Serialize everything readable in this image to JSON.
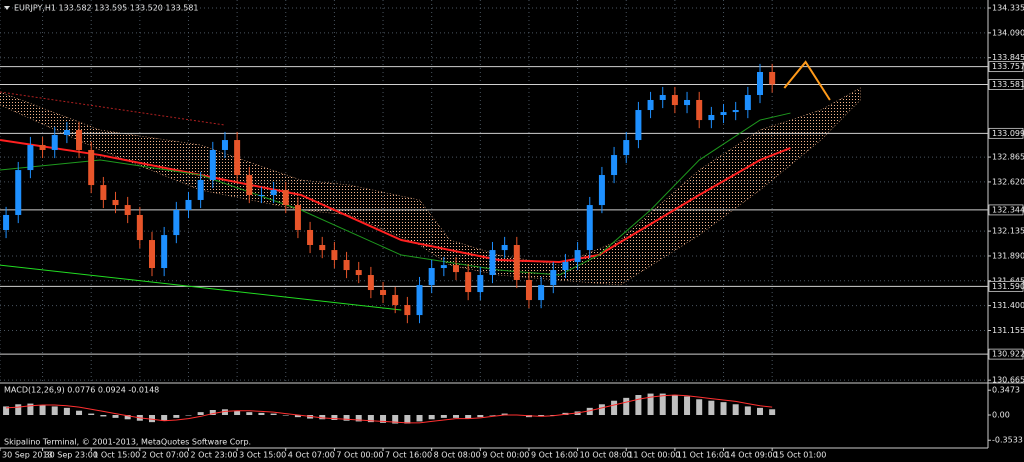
{
  "chart_data": [
    {
      "type": "candlestick",
      "header": "EURJPY,H1  133.582 133.595 133.520 133.581",
      "footer": "Skipalino Terminal, © 2001-2013, MetaQuotes Software Corp.",
      "up_color": "#1e90ff",
      "down_color": "#e8552a",
      "background": "#000000",
      "grid": true,
      "grid_color": "#4a5560",
      "xlim": [
        0,
        325
      ],
      "ylim": [
        130.647,
        134.414
      ],
      "xticks": [
        {
          "value": 0,
          "label": "30 Sep 2013"
        },
        {
          "value": 14,
          "label": "30 Sep 23:00"
        },
        {
          "value": 30,
          "label": "1 Oct 15:00"
        },
        {
          "value": 46,
          "label": "2 Oct 07:00"
        },
        {
          "value": 62,
          "label": "2 Oct 23:00"
        },
        {
          "value": 78,
          "label": "3 Oct 15:00"
        },
        {
          "value": 94,
          "label": "4 Oct 07:00"
        },
        {
          "value": 110,
          "label": "7 Oct 00:00"
        },
        {
          "value": 126,
          "label": "7 Oct 16:00"
        },
        {
          "value": 142,
          "label": "8 Oct 08:00"
        },
        {
          "value": 158,
          "label": "9 Oct 00:00"
        },
        {
          "value": 174,
          "label": "9 Oct 16:00"
        },
        {
          "value": 190,
          "label": "10 Oct 08:00"
        },
        {
          "value": 206,
          "label": "11 Oct 00:00"
        },
        {
          "value": 222,
          "label": "11 Oct 16:00"
        },
        {
          "value": 238,
          "label": "14 Oct 09:00"
        },
        {
          "value": 254,
          "label": "15 Oct 01:00"
        }
      ],
      "yticks": [
        {
          "value": 134.335,
          "label": "134.335"
        },
        {
          "value": 134.09,
          "label": "134.090"
        },
        {
          "value": 133.845,
          "label": "133.845"
        },
        {
          "value": 132.865,
          "label": "132.865"
        },
        {
          "value": 132.62,
          "label": "132.620"
        },
        {
          "value": 132.135,
          "label": "132.135"
        },
        {
          "value": 131.89,
          "label": "131.890"
        },
        {
          "value": 131.645,
          "label": "131.645"
        },
        {
          "value": 131.4,
          "label": "131.400"
        },
        {
          "value": 131.155,
          "label": "131.155"
        },
        {
          "value": 130.665,
          "label": "130.665"
        }
      ],
      "levels": [
        {
          "value": 133.757,
          "label": "133.757"
        },
        {
          "value": 133.581,
          "label": "133.581"
        },
        {
          "value": 133.099,
          "label": "133.099"
        },
        {
          "value": 132.344,
          "label": "132.344"
        },
        {
          "value": 131.59,
          "label": "131.590"
        },
        {
          "value": 130.922,
          "label": "130.922"
        }
      ],
      "x": [
        2,
        6,
        10,
        14,
        18,
        22,
        26,
        30,
        34,
        38,
        42,
        46,
        50,
        54,
        58,
        62,
        66,
        70,
        74,
        78,
        82,
        86,
        90,
        94,
        98,
        102,
        106,
        110,
        114,
        118,
        122,
        126,
        130,
        134,
        138,
        142,
        146,
        150,
        154,
        158,
        162,
        166,
        170,
        174,
        178,
        182,
        186,
        190,
        194,
        198,
        202,
        206,
        210,
        214,
        218,
        222,
        226,
        230,
        234,
        238,
        242,
        246,
        250,
        254
      ],
      "open": [
        132.146,
        132.294,
        132.737,
        132.984,
        132.935,
        133.083,
        133.132,
        132.935,
        132.589,
        132.442,
        132.392,
        132.294,
        132.047,
        131.771,
        132.096,
        132.343,
        132.442,
        132.639,
        132.935,
        133.033,
        132.688,
        132.491,
        132.491,
        132.54,
        132.392,
        132.146,
        131.998,
        131.948,
        131.85,
        131.751,
        131.702,
        131.554,
        131.505,
        131.406,
        131.307,
        131.603,
        131.771,
        131.8,
        131.731,
        131.534,
        131.702,
        131.948,
        131.998,
        131.653,
        131.455,
        131.603,
        131.751,
        131.83,
        131.948,
        132.392,
        132.688,
        132.885,
        133.033,
        133.329,
        133.428,
        133.477,
        133.378,
        133.428,
        133.23,
        133.28,
        133.309,
        133.329,
        133.477,
        133.704
      ],
      "high": [
        132.374,
        132.817,
        133.064,
        133.064,
        133.163,
        133.212,
        133.212,
        133.015,
        132.669,
        132.522,
        132.472,
        132.374,
        132.127,
        132.176,
        132.423,
        132.522,
        132.719,
        133.015,
        133.113,
        133.113,
        132.768,
        132.571,
        132.62,
        132.62,
        132.472,
        132.226,
        132.078,
        132.028,
        131.93,
        131.831,
        131.782,
        131.634,
        131.585,
        131.486,
        131.683,
        131.851,
        131.88,
        131.88,
        131.811,
        131.782,
        132.028,
        132.078,
        132.078,
        131.733,
        131.683,
        131.831,
        131.91,
        132.028,
        132.472,
        132.768,
        132.965,
        133.113,
        133.409,
        133.508,
        133.557,
        133.557,
        133.508,
        133.508,
        133.36,
        133.389,
        133.409,
        133.557,
        133.784,
        133.784
      ],
      "low": [
        132.066,
        132.214,
        132.657,
        132.855,
        132.855,
        133.003,
        132.855,
        132.509,
        132.362,
        132.312,
        132.214,
        131.967,
        131.691,
        131.691,
        132.016,
        132.263,
        132.362,
        132.559,
        132.855,
        132.608,
        132.411,
        132.411,
        132.411,
        132.312,
        132.066,
        131.918,
        131.868,
        131.77,
        131.671,
        131.622,
        131.474,
        131.425,
        131.326,
        131.227,
        131.227,
        131.523,
        131.691,
        131.651,
        131.454,
        131.454,
        131.622,
        131.868,
        131.573,
        131.375,
        131.375,
        131.523,
        131.671,
        131.75,
        131.868,
        132.312,
        132.608,
        132.805,
        132.953,
        133.249,
        133.348,
        133.298,
        133.298,
        133.15,
        133.15,
        133.2,
        133.229,
        133.249,
        133.397,
        133.501
      ],
      "close": [
        132.294,
        132.737,
        132.984,
        132.935,
        133.083,
        133.132,
        132.935,
        132.589,
        132.442,
        132.392,
        132.294,
        132.047,
        131.771,
        132.096,
        132.343,
        132.442,
        132.639,
        132.935,
        133.033,
        132.688,
        132.491,
        132.491,
        132.54,
        132.392,
        132.146,
        131.998,
        131.948,
        131.85,
        131.751,
        131.702,
        131.554,
        131.505,
        131.406,
        131.307,
        131.603,
        131.771,
        131.8,
        131.731,
        131.534,
        131.702,
        131.948,
        131.998,
        131.653,
        131.455,
        131.603,
        131.751,
        131.83,
        131.948,
        132.392,
        132.688,
        132.885,
        133.033,
        133.329,
        133.428,
        133.477,
        133.378,
        133.428,
        133.23,
        133.28,
        133.309,
        133.329,
        133.477,
        133.704,
        133.581
      ],
      "cloud": {
        "color": "#f4b38a",
        "x": [
          0,
          33,
          66,
          99,
          115,
          138,
          148,
          164,
          184,
          204,
          230,
          250,
          270,
          283
        ],
        "upper": [
          133.507,
          133.132,
          132.984,
          132.639,
          132.589,
          132.442,
          132.047,
          131.899,
          131.8,
          132.047,
          132.737,
          133.132,
          133.329,
          133.546
        ],
        "lower": [
          133.379,
          132.935,
          132.54,
          132.343,
          132.294,
          131.998,
          131.8,
          131.702,
          131.652,
          131.603,
          132.096,
          132.54,
          133.033,
          133.428
        ]
      },
      "lines": [
        {
          "color": "#ff2020",
          "width": 2,
          "x": [
            0,
            33,
            66,
            99,
            132,
            164,
            184,
            197,
            230,
            250,
            260
          ],
          "values": [
            133.033,
            132.885,
            132.688,
            132.491,
            132.047,
            131.85,
            131.83,
            131.899,
            132.491,
            132.836,
            132.954
          ]
        },
        {
          "color": "#1e9a1e",
          "width": 1,
          "x": [
            0,
            33,
            66,
            99,
            132,
            164,
            184,
            197,
            214,
            230,
            250,
            260
          ],
          "values": [
            132.737,
            132.836,
            132.688,
            132.343,
            131.899,
            131.751,
            131.702,
            131.899,
            132.343,
            132.836,
            133.23,
            133.299
          ]
        },
        {
          "color": "#22dd22",
          "width": 1,
          "x": [
            0,
            132
          ],
          "values": [
            131.8,
            131.357
          ]
        },
        {
          "color": "#b02020",
          "width": 1,
          "dash": true,
          "x": [
            0,
            74
          ],
          "values": [
            133.507,
            133.181
          ]
        },
        {
          "color": "#ff9a1a",
          "width": 2,
          "x": [
            258,
            265,
            273
          ],
          "values": [
            133.546,
            133.803,
            133.428
          ]
        }
      ]
    },
    {
      "type": "macd",
      "title": "MACD(12,26,9) 0.0776 0.0924 -0.0148",
      "ylim": [
        -0.462,
        0.434
      ],
      "yticks": [
        0.3473,
        {
          "value": 0,
          "label": "0.00"
        },
        -0.3533
      ],
      "hist_color": "#c0c0c0",
      "signal_color": "#ff3030",
      "values": [
        0.12,
        0.15,
        0.16,
        0.14,
        0.12,
        0.1,
        0.06,
        0.02,
        -0.02,
        -0.04,
        -0.06,
        -0.08,
        -0.1,
        -0.08,
        -0.04,
        0.0,
        0.04,
        0.07,
        0.08,
        0.06,
        0.04,
        0.03,
        0.02,
        0.0,
        -0.03,
        -0.05,
        -0.06,
        -0.07,
        -0.08,
        -0.09,
        -0.1,
        -0.11,
        -0.12,
        -0.12,
        -0.09,
        -0.06,
        -0.04,
        -0.04,
        -0.05,
        -0.03,
        0.0,
        0.02,
        0.0,
        -0.03,
        -0.02,
        0.0,
        0.03,
        0.05,
        0.1,
        0.15,
        0.2,
        0.24,
        0.28,
        0.3,
        0.3,
        0.28,
        0.26,
        0.22,
        0.2,
        0.18,
        0.15,
        0.12,
        0.1,
        0.08
      ],
      "signal": [
        0.1,
        0.11,
        0.13,
        0.14,
        0.14,
        0.13,
        0.11,
        0.08,
        0.05,
        0.02,
        -0.01,
        -0.04,
        -0.06,
        -0.08,
        -0.07,
        -0.05,
        -0.02,
        0.02,
        0.05,
        0.06,
        0.06,
        0.05,
        0.04,
        0.02,
        0.0,
        -0.02,
        -0.04,
        -0.05,
        -0.06,
        -0.07,
        -0.08,
        -0.09,
        -0.1,
        -0.11,
        -0.11,
        -0.09,
        -0.07,
        -0.05,
        -0.05,
        -0.04,
        -0.02,
        0.0,
        0.0,
        -0.01,
        -0.02,
        -0.01,
        0.01,
        0.03,
        0.06,
        0.1,
        0.14,
        0.18,
        0.22,
        0.25,
        0.27,
        0.28,
        0.27,
        0.25,
        0.23,
        0.21,
        0.19,
        0.16,
        0.13,
        0.11
      ]
    }
  ]
}
